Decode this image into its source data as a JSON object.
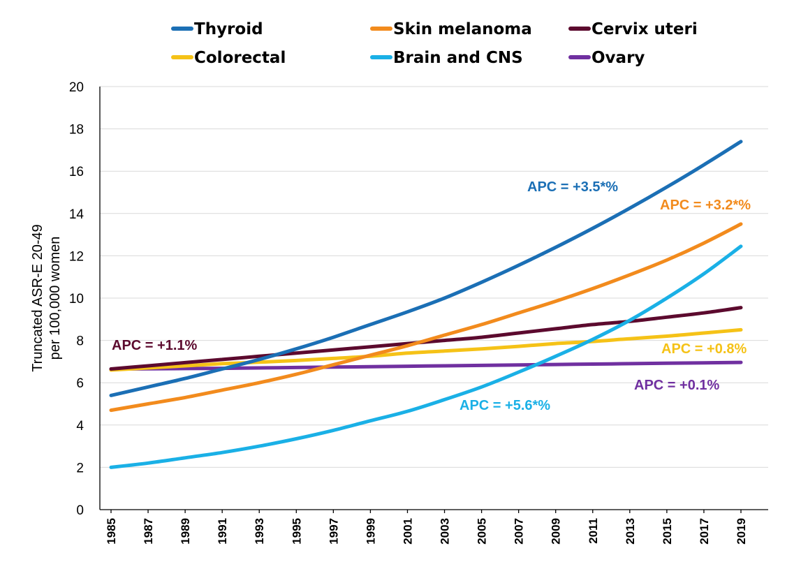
{
  "chart_data": {
    "type": "line",
    "title": "",
    "xlabel": "",
    "ylabel": [
      "Truncated ASR-E 20-49",
      "per 100,000 women"
    ],
    "ylim": [
      0,
      20
    ],
    "yticks": [
      "0",
      "2",
      "4",
      "6",
      "8",
      "10",
      "12",
      "14",
      "16",
      "18",
      "20"
    ],
    "xlim": [
      1985,
      2019
    ],
    "xticks": [
      "1985",
      "1987",
      "1989",
      "1991",
      "1993",
      "1995",
      "1997",
      "1999",
      "2001",
      "2003",
      "2005",
      "2007",
      "2009",
      "2011",
      "2013",
      "2015",
      "2017",
      "2019"
    ],
    "grid": true,
    "legend_position": "top",
    "series": [
      {
        "name": "Thyroid",
        "color": "#1b6fb5",
        "x": [
          1985,
          1987,
          1989,
          1991,
          1993,
          1995,
          1997,
          1999,
          2001,
          2003,
          2005,
          2007,
          2009,
          2011,
          2013,
          2015,
          2017,
          2019
        ],
        "values": [
          5.4,
          5.8,
          6.2,
          6.65,
          7.1,
          7.6,
          8.15,
          8.75,
          9.35,
          10.0,
          10.75,
          11.55,
          12.4,
          13.3,
          14.25,
          15.25,
          16.3,
          17.4
        ]
      },
      {
        "name": "Skin melanoma",
        "color": "#f28b1d",
        "x": [
          1985,
          1987,
          1989,
          1991,
          1993,
          1995,
          1997,
          1999,
          2001,
          2003,
          2005,
          2007,
          2009,
          2011,
          2013,
          2015,
          2017,
          2019
        ],
        "values": [
          4.7,
          5.0,
          5.3,
          5.65,
          6.0,
          6.4,
          6.85,
          7.3,
          7.75,
          8.25,
          8.75,
          9.3,
          9.85,
          10.45,
          11.1,
          11.8,
          12.6,
          13.5
        ]
      },
      {
        "name": "Cervix uteri",
        "color": "#5c0a2e",
        "x": [
          1985,
          1987,
          1989,
          1991,
          1993,
          1995,
          1997,
          1999,
          2001,
          2003,
          2005,
          2007,
          2009,
          2011,
          2013,
          2015,
          2017,
          2019
        ],
        "values": [
          6.65,
          6.8,
          6.95,
          7.1,
          7.25,
          7.4,
          7.55,
          7.7,
          7.85,
          8.0,
          8.15,
          8.35,
          8.55,
          8.75,
          8.9,
          9.1,
          9.3,
          9.55
        ]
      },
      {
        "name": "Colorectal",
        "color": "#f5c217",
        "x": [
          1985,
          1987,
          1989,
          1991,
          1993,
          1995,
          1997,
          1999,
          2001,
          2003,
          2005,
          2007,
          2009,
          2011,
          2013,
          2015,
          2017,
          2019
        ],
        "values": [
          6.6,
          6.7,
          6.8,
          6.9,
          6.97,
          7.05,
          7.15,
          7.25,
          7.4,
          7.5,
          7.6,
          7.72,
          7.85,
          7.95,
          8.08,
          8.2,
          8.35,
          8.5
        ]
      },
      {
        "name": "Brain and CNS",
        "color": "#1ab0e6",
        "x": [
          1985,
          1987,
          1989,
          1991,
          1993,
          1995,
          1997,
          1999,
          2001,
          2003,
          2005,
          2007,
          2009,
          2011,
          2013,
          2015,
          2017,
          2019
        ],
        "values": [
          2.0,
          2.2,
          2.45,
          2.7,
          3.0,
          3.35,
          3.75,
          4.2,
          4.65,
          5.2,
          5.8,
          6.5,
          7.25,
          8.05,
          8.95,
          10.0,
          11.15,
          12.45
        ]
      },
      {
        "name": "Ovary",
        "color": "#7030a0",
        "x": [
          1985,
          1987,
          1989,
          1991,
          1993,
          1995,
          1997,
          1999,
          2001,
          2003,
          2005,
          2007,
          2009,
          2011,
          2013,
          2015,
          2017,
          2019
        ],
        "values": [
          6.65,
          6.66,
          6.67,
          6.68,
          6.7,
          6.72,
          6.74,
          6.76,
          6.78,
          6.8,
          6.82,
          6.84,
          6.86,
          6.88,
          6.9,
          6.92,
          6.94,
          6.96
        ]
      }
    ],
    "annotations": [
      {
        "text": "APC = +3.5*%",
        "series": "Thyroid",
        "color": "#1b6fb5"
      },
      {
        "text": "APC = +3.2*%",
        "series": "Skin melanoma",
        "color": "#f28b1d"
      },
      {
        "text": "APC = +1.1%",
        "series": "Cervix uteri",
        "color": "#5c0a2e"
      },
      {
        "text": "APC = +0.8%",
        "series": "Colorectal",
        "color": "#f5c217"
      },
      {
        "text": "APC = +0.1%",
        "series": "Ovary",
        "color": "#7030a0"
      },
      {
        "text": "APC = +5.6*%",
        "series": "Brain and CNS",
        "color": "#1ab0e6"
      }
    ]
  }
}
